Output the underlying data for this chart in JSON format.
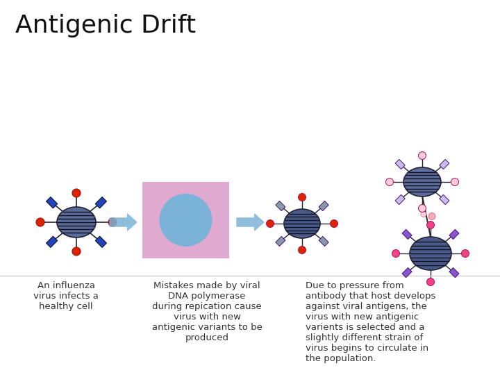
{
  "title": "Antigenic Drift",
  "title_fontsize": 26,
  "background_color": "#ffffff",
  "text1": "An influenza\nvirus infects a\nhealthy cell",
  "text2": "Mistakes made by viral\nDNA polymerase\nduring repication cause\nvirus with new\nantigenic variants to be\nproduced",
  "text3": "Due to pressure from\nantibody that host develops\nagainst viral antigens, the\nvirus with new antigenic\nvarients is selected and a\nslightly different strain of\nvirus begins to circulate in\nthe population.",
  "virus_body": "#5a6b9a",
  "virus_lines": "#111122",
  "virus_red": "#dd2200",
  "virus_blue": "#2244bb",
  "cell_bg": "#e0aad0",
  "cell_circle": "#7ab2d8",
  "arrow_color": "#7ab2d8",
  "mutant_body_dark": "#4a5a8a",
  "mutant_body_light": "#5a6b9a",
  "mutant_purple": "#8855cc",
  "mutant_lavender": "#ccbbee",
  "mutant_pink_bright": "#ee4488",
  "mutant_pink_light": "#ffaabb",
  "mutant_pink_pale": "#ffccdd",
  "text_color": "#333333"
}
